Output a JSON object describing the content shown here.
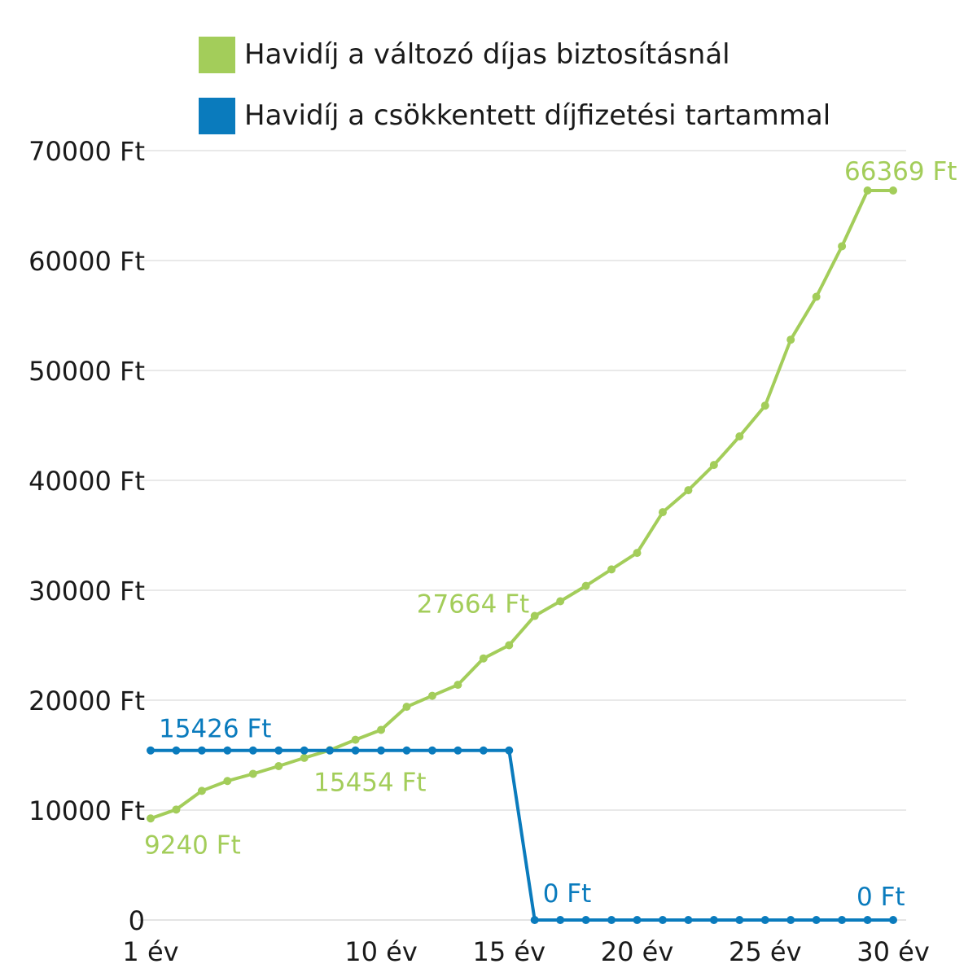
{
  "chart_data": {
    "type": "line",
    "title": "",
    "xlabel": "",
    "ylabel": "",
    "ylim": [
      0,
      70000
    ],
    "y_ticks": [
      0,
      10000,
      20000,
      30000,
      40000,
      50000,
      60000,
      70000
    ],
    "y_tick_labels": [
      "0",
      "10000 Ft",
      "20000 Ft",
      "30000 Ft",
      "40000 Ft",
      "50000 Ft",
      "60000 Ft",
      "70000 Ft"
    ],
    "x_ticks": [
      {
        "year": 1,
        "label": "1 év"
      },
      {
        "year": 10,
        "label": "10 év"
      },
      {
        "year": 15,
        "label": "15 év"
      },
      {
        "year": 20,
        "label": "20 év"
      },
      {
        "year": 25,
        "label": "25 év"
      },
      {
        "year": 30,
        "label": "30 év"
      }
    ],
    "grid": true,
    "legend_position": "top",
    "x": [
      1,
      2,
      3,
      4,
      5,
      6,
      7,
      8,
      9,
      10,
      11,
      12,
      13,
      14,
      15,
      16,
      17,
      18,
      19,
      20,
      21,
      22,
      23,
      24,
      25,
      26,
      27,
      28,
      29,
      30
    ],
    "series": [
      {
        "name": "Havidíj a változó díjas biztosításnál",
        "color": "#a3cd5a",
        "values": [
          9240,
          10050,
          11750,
          12650,
          13300,
          14000,
          14750,
          15454,
          16400,
          17300,
          19400,
          20400,
          21400,
          23800,
          25000,
          27664,
          29000,
          30400,
          31900,
          33400,
          37100,
          39100,
          41400,
          44000,
          46800,
          52800,
          56700,
          61300,
          66369,
          66369
        ],
        "point_labels": [
          {
            "year": 1,
            "text": "9240 Ft"
          },
          {
            "year": 8,
            "text": "15454 Ft"
          },
          {
            "year": 16,
            "text": "27664 Ft"
          },
          {
            "year": 30,
            "text": "66369 Ft"
          }
        ]
      },
      {
        "name": "Havidíj a csökkentett díjfizetési tartammal",
        "color": "#0a7bbd",
        "values": [
          15426,
          15426,
          15426,
          15426,
          15426,
          15426,
          15426,
          15426,
          15426,
          15426,
          15426,
          15426,
          15426,
          15426,
          15426,
          0,
          0,
          0,
          0,
          0,
          0,
          0,
          0,
          0,
          0,
          0,
          0,
          0,
          0,
          0
        ],
        "point_labels": [
          {
            "year": 1,
            "text": "15426 Ft"
          },
          {
            "year": 16,
            "text": "0 Ft"
          },
          {
            "year": 30,
            "text": "0 Ft"
          }
        ]
      }
    ]
  }
}
